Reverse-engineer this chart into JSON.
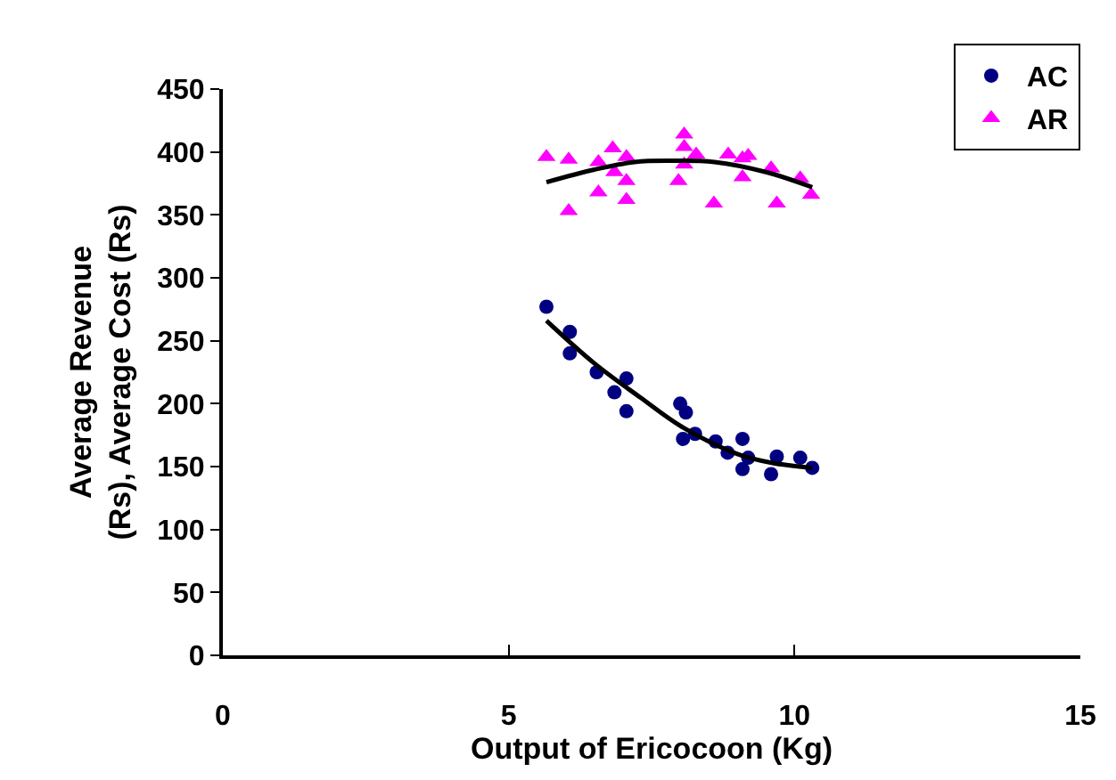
{
  "chart_data": {
    "type": "scatter",
    "xlabel": "Output of Ericocoon (Kg)",
    "ylabel": "Average Revenue\n(Rs), Average Cost (Rs)",
    "xlim": [
      0,
      15
    ],
    "xticks": [
      0,
      5,
      10,
      15
    ],
    "ylim": [
      0,
      450
    ],
    "yticks": [
      0,
      50,
      100,
      150,
      200,
      250,
      300,
      350,
      400,
      450
    ],
    "grid": false,
    "legend": "top right",
    "series": [
      {
        "name": "AC",
        "color": "#000080",
        "marker": "circle",
        "x": [
          5.66,
          6.07,
          6.07,
          6.54,
          6.85,
          7.06,
          7.06,
          8.0,
          8.1,
          8.05,
          8.26,
          8.62,
          8.83,
          9.09,
          9.09,
          9.19,
          9.59,
          9.69,
          10.1,
          10.31
        ],
        "values": [
          277,
          257,
          240,
          225,
          209,
          220,
          194,
          200,
          193,
          172,
          176,
          170,
          161,
          172,
          148,
          157,
          144,
          158,
          157,
          149
        ]
      },
      {
        "name": "AR",
        "color": "#ff00ff",
        "marker": "triangle",
        "x": [
          5.66,
          6.05,
          6.05,
          6.57,
          6.57,
          6.82,
          6.85,
          7.06,
          7.06,
          7.06,
          7.97,
          8.07,
          8.07,
          8.07,
          8.28,
          8.59,
          8.84,
          9.09,
          9.09,
          9.19,
          9.59,
          9.69,
          10.1,
          10.29
        ],
        "values": [
          396,
          394,
          353,
          392,
          368,
          403,
          384,
          396,
          377,
          362,
          377,
          414,
          404,
          390,
          398,
          359,
          398,
          395,
          380,
          397,
          387,
          359,
          379,
          366
        ]
      },
      {
        "type": "line",
        "color": "#000000",
        "marker": "none",
        "x": [
          5.66,
          6.5,
          7.3,
          8.05,
          9.0,
          9.6,
          10.31
        ],
        "values": [
          266,
          232,
          205,
          181,
          160,
          153,
          149
        ]
      },
      {
        "type": "line",
        "color": "#000000",
        "marker": "none",
        "x": [
          5.66,
          6.5,
          7.2,
          7.84,
          8.6,
          9.5,
          10.31
        ],
        "values": [
          376,
          386,
          392,
          393,
          392,
          384,
          372
        ]
      }
    ]
  }
}
